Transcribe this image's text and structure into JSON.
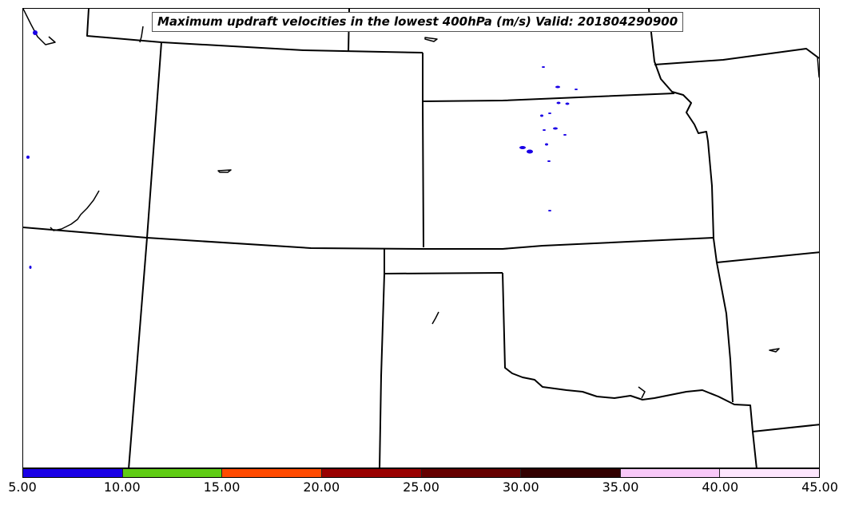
{
  "title": "Maximum updraft velocities in the lowest 400hPa (m/s) Valid: 201804290900",
  "colorbar": {
    "colors": [
      "#1a00e6",
      "#5fcc14",
      "#ff4a00",
      "#990000",
      "#660000",
      "#330000",
      "#f7c8f7",
      "#fde6fd"
    ],
    "tick_labels": [
      "5.00",
      "10.00",
      "15.00",
      "20.00",
      "25.00",
      "30.00",
      "35.00",
      "40.00",
      "45.00"
    ]
  },
  "map": {
    "background": "#ffffff",
    "boundary_color": "#000000",
    "updraft_color": "#1a00e6"
  }
}
